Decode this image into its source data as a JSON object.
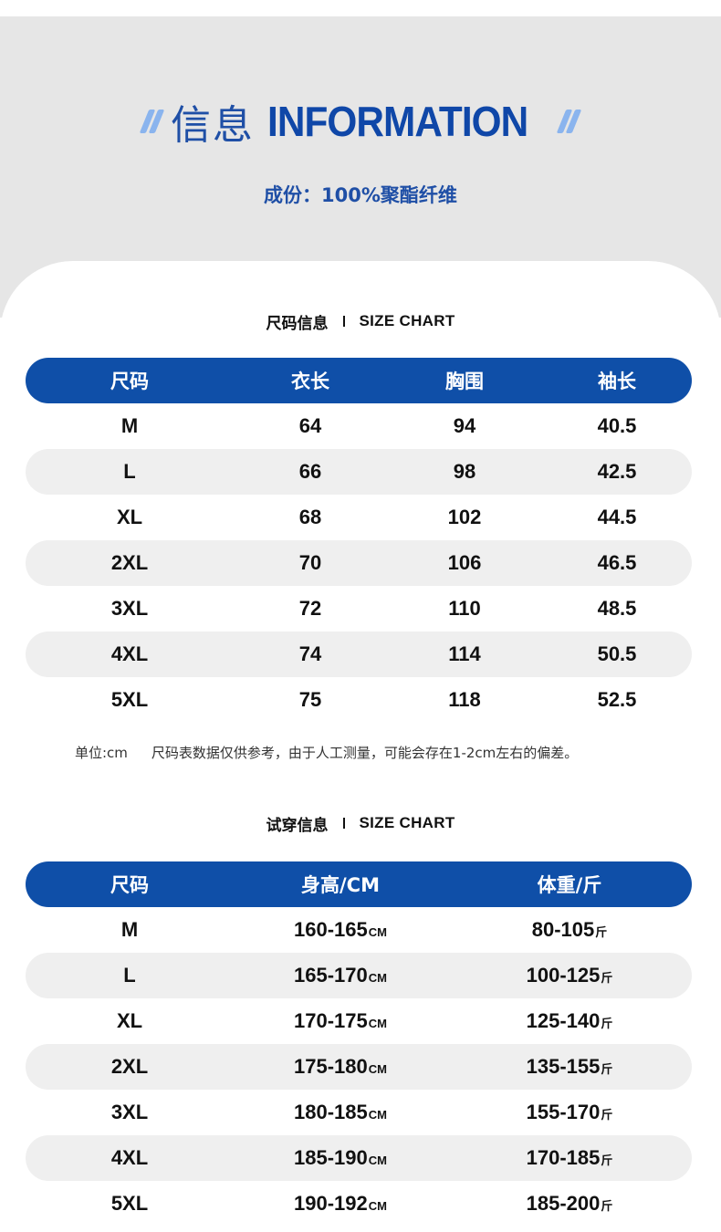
{
  "header": {
    "title_cn": "信息",
    "title_en": "INFORMATION",
    "composition": "成份：100%聚酯纤维",
    "colors": {
      "accent": "#0f4fa8",
      "slash": "#8ab4ee",
      "header_bg": "#e6e6e6",
      "row_alt": "#efefef"
    }
  },
  "size_chart": {
    "title_cn": "尺码信息",
    "title_en": "SIZE CHART",
    "columns": [
      "尺码",
      "衣长",
      "胸围",
      "袖长"
    ],
    "rows": [
      [
        "M",
        "64",
        "94",
        "40.5"
      ],
      [
        "L",
        "66",
        "98",
        "42.5"
      ],
      [
        "XL",
        "68",
        "102",
        "44.5"
      ],
      [
        "2XL",
        "70",
        "106",
        "46.5"
      ],
      [
        "3XL",
        "72",
        "110",
        "48.5"
      ],
      [
        "4XL",
        "74",
        "114",
        "50.5"
      ],
      [
        "5XL",
        "75",
        "118",
        "52.5"
      ]
    ],
    "note_unit": "单位:cm",
    "note_text": "尺码表数据仅供参考，由于人工测量，可能会存在1-2cm左右的偏差。"
  },
  "fit_chart": {
    "title_cn": "试穿信息",
    "title_en": "SIZE CHART",
    "columns": [
      "尺码",
      "身高/CM",
      "体重/斤"
    ],
    "height_unit": "CM",
    "weight_unit": "斤",
    "rows": [
      [
        "M",
        "160-165",
        "80-105"
      ],
      [
        "L",
        "165-170",
        "100-125"
      ],
      [
        "XL",
        "170-175",
        "125-140"
      ],
      [
        "2XL",
        "175-180",
        "135-155"
      ],
      [
        "3XL",
        "180-185",
        "155-170"
      ],
      [
        "4XL",
        "185-190",
        "170-185"
      ],
      [
        "5XL",
        "190-192",
        "185-200"
      ]
    ]
  }
}
